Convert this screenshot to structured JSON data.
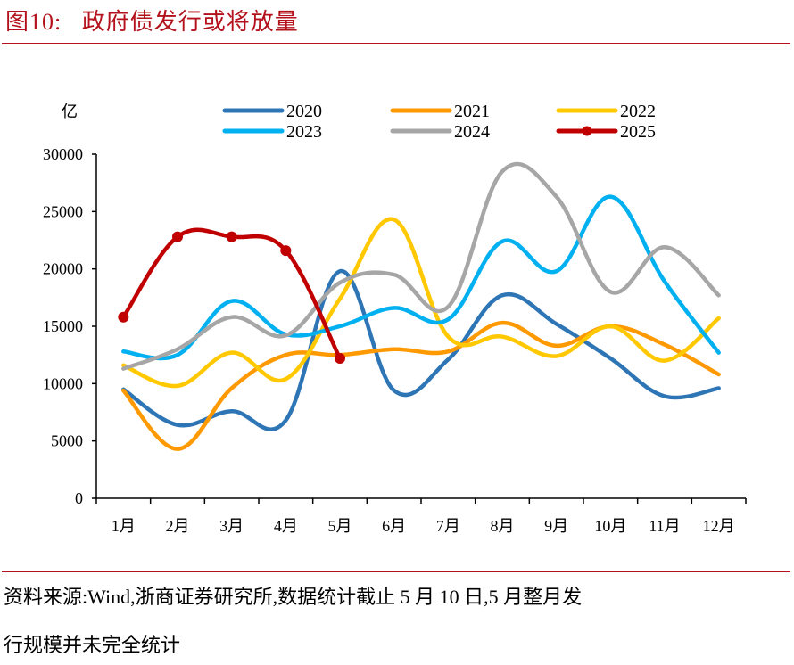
{
  "figure": {
    "title": "图10:   政府债发行或将放量",
    "source_line1": "资料来源:Wind,浙商证券研究所,数据统计截止 5 月 10 日,5 月整月发",
    "source_line2": "行规模并未完全统计"
  },
  "chart_data": {
    "type": "line",
    "title": "政府债发行或将放量",
    "xlabel": "",
    "ylabel": "亿",
    "ylim": [
      0,
      30000
    ],
    "yticks": [
      0,
      5000,
      10000,
      15000,
      20000,
      25000,
      30000
    ],
    "ytick_labels": [
      "0",
      "5000",
      "10000",
      "15000",
      "20000",
      "25000",
      "30000"
    ],
    "categories": [
      "1月",
      "2月",
      "3月",
      "4月",
      "5月",
      "6月",
      "7月",
      "8月",
      "9月",
      "10月",
      "11月",
      "12月"
    ],
    "grid": false,
    "legend_position": "top",
    "smooth": true,
    "series": [
      {
        "name": "2020",
        "color": "#2e75b6",
        "markers": false,
        "values": [
          9500,
          6400,
          7600,
          6800,
          19800,
          9400,
          12100,
          17700,
          15200,
          12200,
          8900,
          9600
        ]
      },
      {
        "name": "2021",
        "color": "#ff9900",
        "markers": false,
        "values": [
          9400,
          4300,
          9600,
          12500,
          12500,
          13000,
          12800,
          15300,
          13300,
          15000,
          13400,
          10800
        ]
      },
      {
        "name": "2022",
        "color": "#ffc800",
        "markers": false,
        "values": [
          11600,
          9800,
          12700,
          10400,
          17400,
          24300,
          14100,
          14100,
          12400,
          15000,
          12000,
          15700
        ]
      },
      {
        "name": "2023",
        "color": "#00b0f0",
        "markers": false,
        "values": [
          12800,
          12500,
          17200,
          14300,
          15000,
          16600,
          15600,
          22400,
          19800,
          26300,
          18900,
          12700
        ]
      },
      {
        "name": "2024",
        "color": "#a6a6a6",
        "markers": false,
        "values": [
          11300,
          13000,
          15800,
          14200,
          18800,
          19500,
          16700,
          28500,
          26300,
          18000,
          21900,
          17700
        ]
      },
      {
        "name": "2025",
        "color": "#c00000",
        "markers": true,
        "values": [
          15800,
          22800,
          22800,
          21600,
          12200
        ]
      }
    ]
  }
}
